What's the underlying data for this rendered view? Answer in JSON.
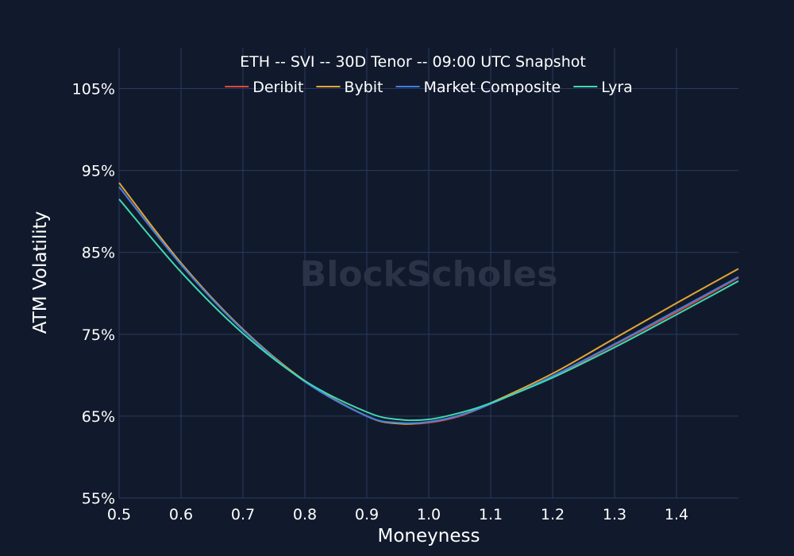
{
  "chart_data": {
    "type": "line",
    "title": "ETH -- SVI -- 30D Tenor -- 09:00 UTC Snapshot",
    "xlabel": "Moneyness",
    "ylabel": "ATM Volatility",
    "xlim": [
      0.5,
      1.5
    ],
    "ylim": [
      55,
      110
    ],
    "x_ticks": [
      "0.5",
      "0.6",
      "0.7",
      "0.8",
      "0.9",
      "1.0",
      "1.1",
      "1.2",
      "1.3",
      "1.4"
    ],
    "y_ticks": [
      "55%",
      "65%",
      "75%",
      "85%",
      "95%",
      "105%"
    ],
    "grid": true,
    "legend_position": "top",
    "watermark": "BlockScholes",
    "x": [
      0.5,
      0.6,
      0.7,
      0.8,
      0.9,
      0.95,
      1.0,
      1.05,
      1.1,
      1.2,
      1.3,
      1.4,
      1.5
    ],
    "series": [
      {
        "name": "Deribit",
        "color": "#e0453a",
        "values": [
          93.0,
          83.5,
          75.5,
          69.2,
          65.0,
          64.1,
          64.2,
          65.0,
          66.5,
          69.8,
          73.7,
          77.7,
          81.9
        ]
      },
      {
        "name": "Bybit",
        "color": "#e3a535",
        "values": [
          93.5,
          83.7,
          75.6,
          69.3,
          65.0,
          64.1,
          64.3,
          65.1,
          66.6,
          70.2,
          74.5,
          78.8,
          83.0
        ]
      },
      {
        "name": "Market Composite",
        "color": "#3f7fe0",
        "values": [
          93.0,
          83.5,
          75.5,
          69.2,
          65.0,
          64.2,
          64.3,
          65.1,
          66.5,
          69.9,
          73.8,
          77.9,
          82.0
        ]
      },
      {
        "name": "Lyra",
        "color": "#3fd9b0",
        "values": [
          91.5,
          82.6,
          75.1,
          69.3,
          65.5,
          64.6,
          64.6,
          65.4,
          66.6,
          69.7,
          73.4,
          77.4,
          81.5
        ]
      }
    ]
  }
}
